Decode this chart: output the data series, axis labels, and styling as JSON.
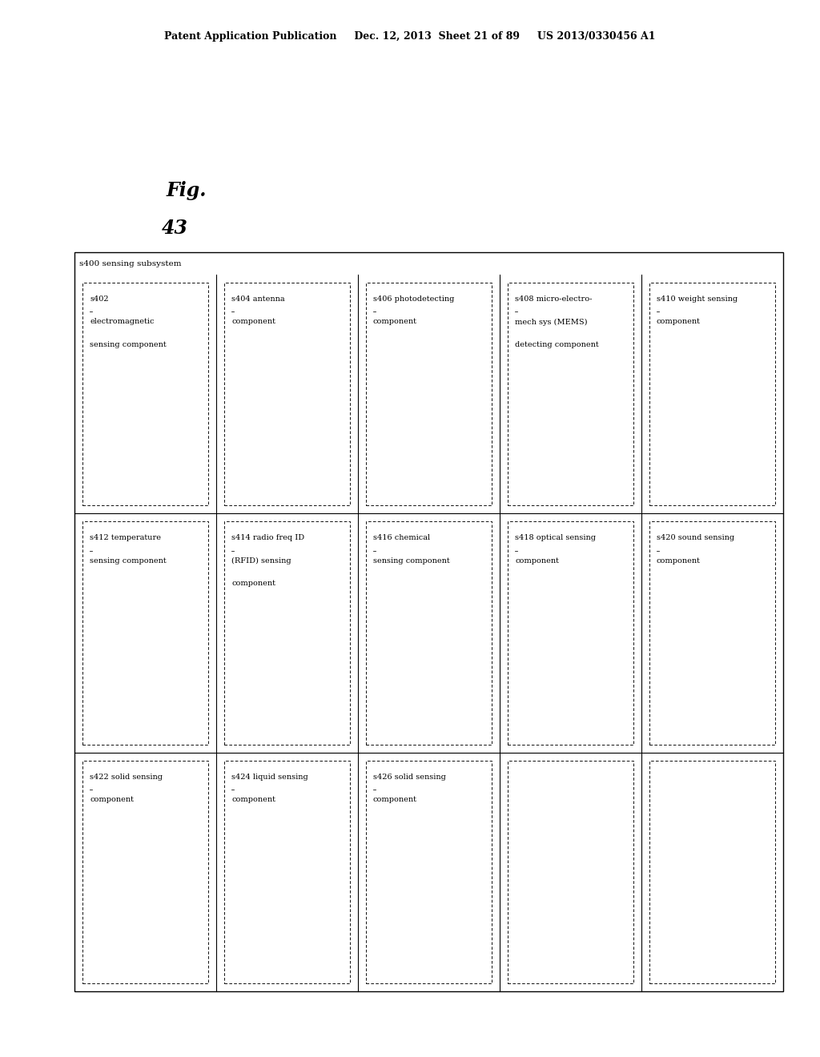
{
  "bg_color": "#ffffff",
  "header": "Patent Application Publication     Dec. 12, 2013  Sheet 21 of 89     US 2013/0330456 A1",
  "fig_label_1": "Fig.",
  "fig_label_2": "43",
  "outer_label": "s400 sensing subsystem",
  "n_cols": 5,
  "n_rows": 3,
  "cells": [
    [
      "s402\nelectromagnetic\nsensing component",
      "s412 temperature\nsensing component",
      "s422 solid sensing\ncomponent"
    ],
    [
      "s404 antenna\ncomponent",
      "s414 radio freq ID\n(RFID) sensing\ncomponent",
      "s424 liquid sensing\ncomponent"
    ],
    [
      "s406 photodetecting\ncomponent",
      "s416 chemical\nsensing component",
      "s426 solid sensing\ncomponent"
    ],
    [
      "s408 micro-electro-\nmech sys (MEMS)\ndetecting component",
      "s418 optical sensing\ncomponent",
      ""
    ],
    [
      "s410 weight sensing\ncomponent",
      "s420 sound sensing\ncomponent",
      ""
    ]
  ],
  "underlined": [
    "s402",
    "s404",
    "s406",
    "s408",
    "s410",
    "s412",
    "s414",
    "s416",
    "s418",
    "s420",
    "s422",
    "s424",
    "s426"
  ]
}
